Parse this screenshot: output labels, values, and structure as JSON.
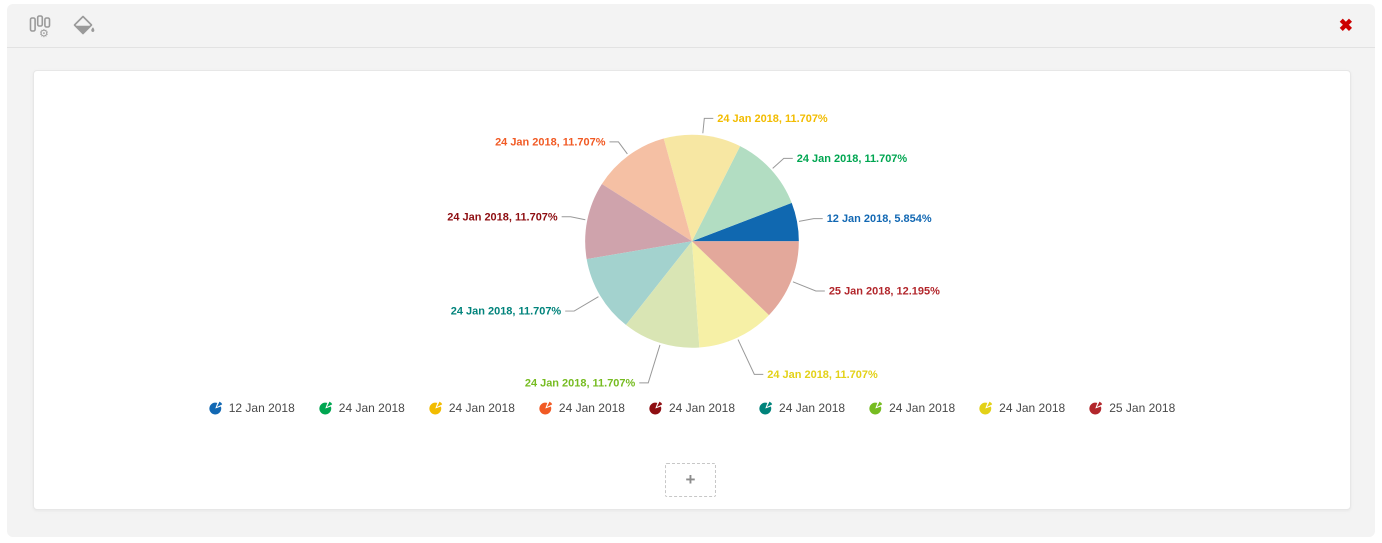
{
  "toolbar": {
    "close_glyph": "✖"
  },
  "chart_data": {
    "type": "pie",
    "legend_position": "bottom",
    "value_unit": "percent",
    "slices": [
      {
        "category": "12 Jan 2018",
        "value": 5.854,
        "label": "12 Jan 2018, 5.854%",
        "color": "#1268B3",
        "fill": "#1068B0"
      },
      {
        "category": "24 Jan 2018",
        "value": 11.707,
        "label": "24 Jan 2018, 11.707%",
        "color": "#00A651",
        "fill": "#B2DDC2"
      },
      {
        "category": "24 Jan 2018",
        "value": 11.707,
        "label": "24 Jan 2018, 11.707%",
        "color": "#F2BC00",
        "fill": "#F7E7A3"
      },
      {
        "category": "24 Jan 2018",
        "value": 11.707,
        "label": "24 Jan 2018, 11.707%",
        "color": "#F15A24",
        "fill": "#F5C0A4"
      },
      {
        "category": "24 Jan 2018",
        "value": 11.707,
        "label": "24 Jan 2018, 11.707%",
        "color": "#8E0E12",
        "fill": "#CFA3AC"
      },
      {
        "category": "24 Jan 2018",
        "value": 11.707,
        "label": "24 Jan 2018, 11.707%",
        "color": "#00837B",
        "fill": "#A3D2CE"
      },
      {
        "category": "24 Jan 2018",
        "value": 11.707,
        "label": "24 Jan 2018, 11.707%",
        "color": "#76BC21",
        "fill": "#D9E5B4"
      },
      {
        "category": "24 Jan 2018",
        "value": 11.707,
        "label": "24 Jan 2018, 11.707%",
        "color": "#E3D117",
        "fill": "#F6F0A6"
      },
      {
        "category": "25 Jan 2018",
        "value": 12.195,
        "label": "25 Jan 2018, 12.195%",
        "color": "#B2262B",
        "fill": "#E3A89B"
      }
    ]
  },
  "add_button": {
    "label": "+"
  }
}
